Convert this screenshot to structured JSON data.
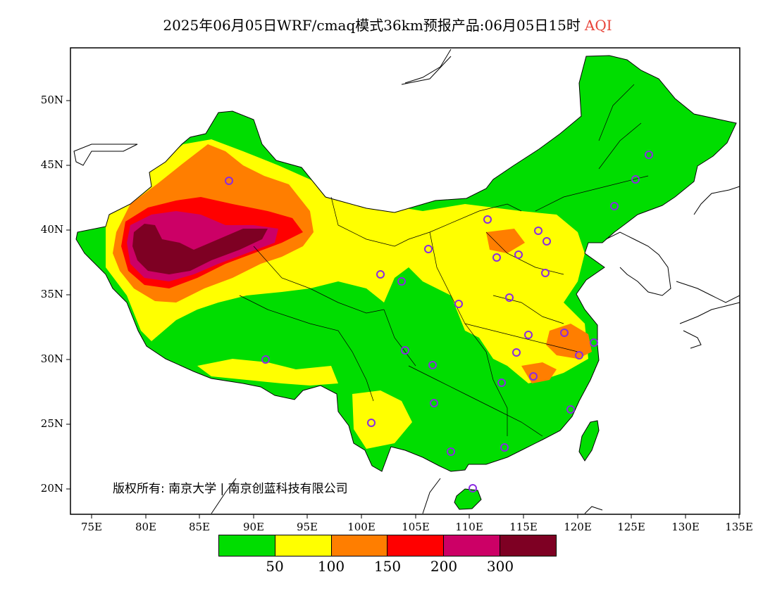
{
  "title": {
    "main": "2025年06月05日WRF/cmaq模式36km预报产品:06月05日15时",
    "variable": "AQI"
  },
  "axes": {
    "lat_ticks": [
      "50N",
      "45N",
      "40N",
      "35N",
      "30N",
      "25N",
      "20N"
    ],
    "lon_ticks": [
      "75E",
      "80E",
      "85E",
      "90E",
      "95E",
      "100E",
      "105E",
      "110E",
      "115E",
      "120E",
      "125E",
      "130E",
      "135E"
    ],
    "lon_range": [
      73,
      135
    ],
    "lat_range": [
      18,
      54
    ]
  },
  "legend": {
    "colors": [
      "#00dd00",
      "#ffff00",
      "#ff7e00",
      "#ff0000",
      "#cc0066",
      "#7e0023"
    ],
    "labels": [
      "50",
      "100",
      "150",
      "200",
      "300"
    ]
  },
  "copyright": "版权所有: 南京大学 | 南京创蓝科技有限公司",
  "colors": {
    "good": "#00dd00",
    "moderate": "#ffff00",
    "sensitive": "#ff7e00",
    "unhealthy": "#ff0000",
    "very_unhealthy": "#cc0066",
    "hazardous": "#7e0023",
    "station_marker": "#8a2be2"
  }
}
